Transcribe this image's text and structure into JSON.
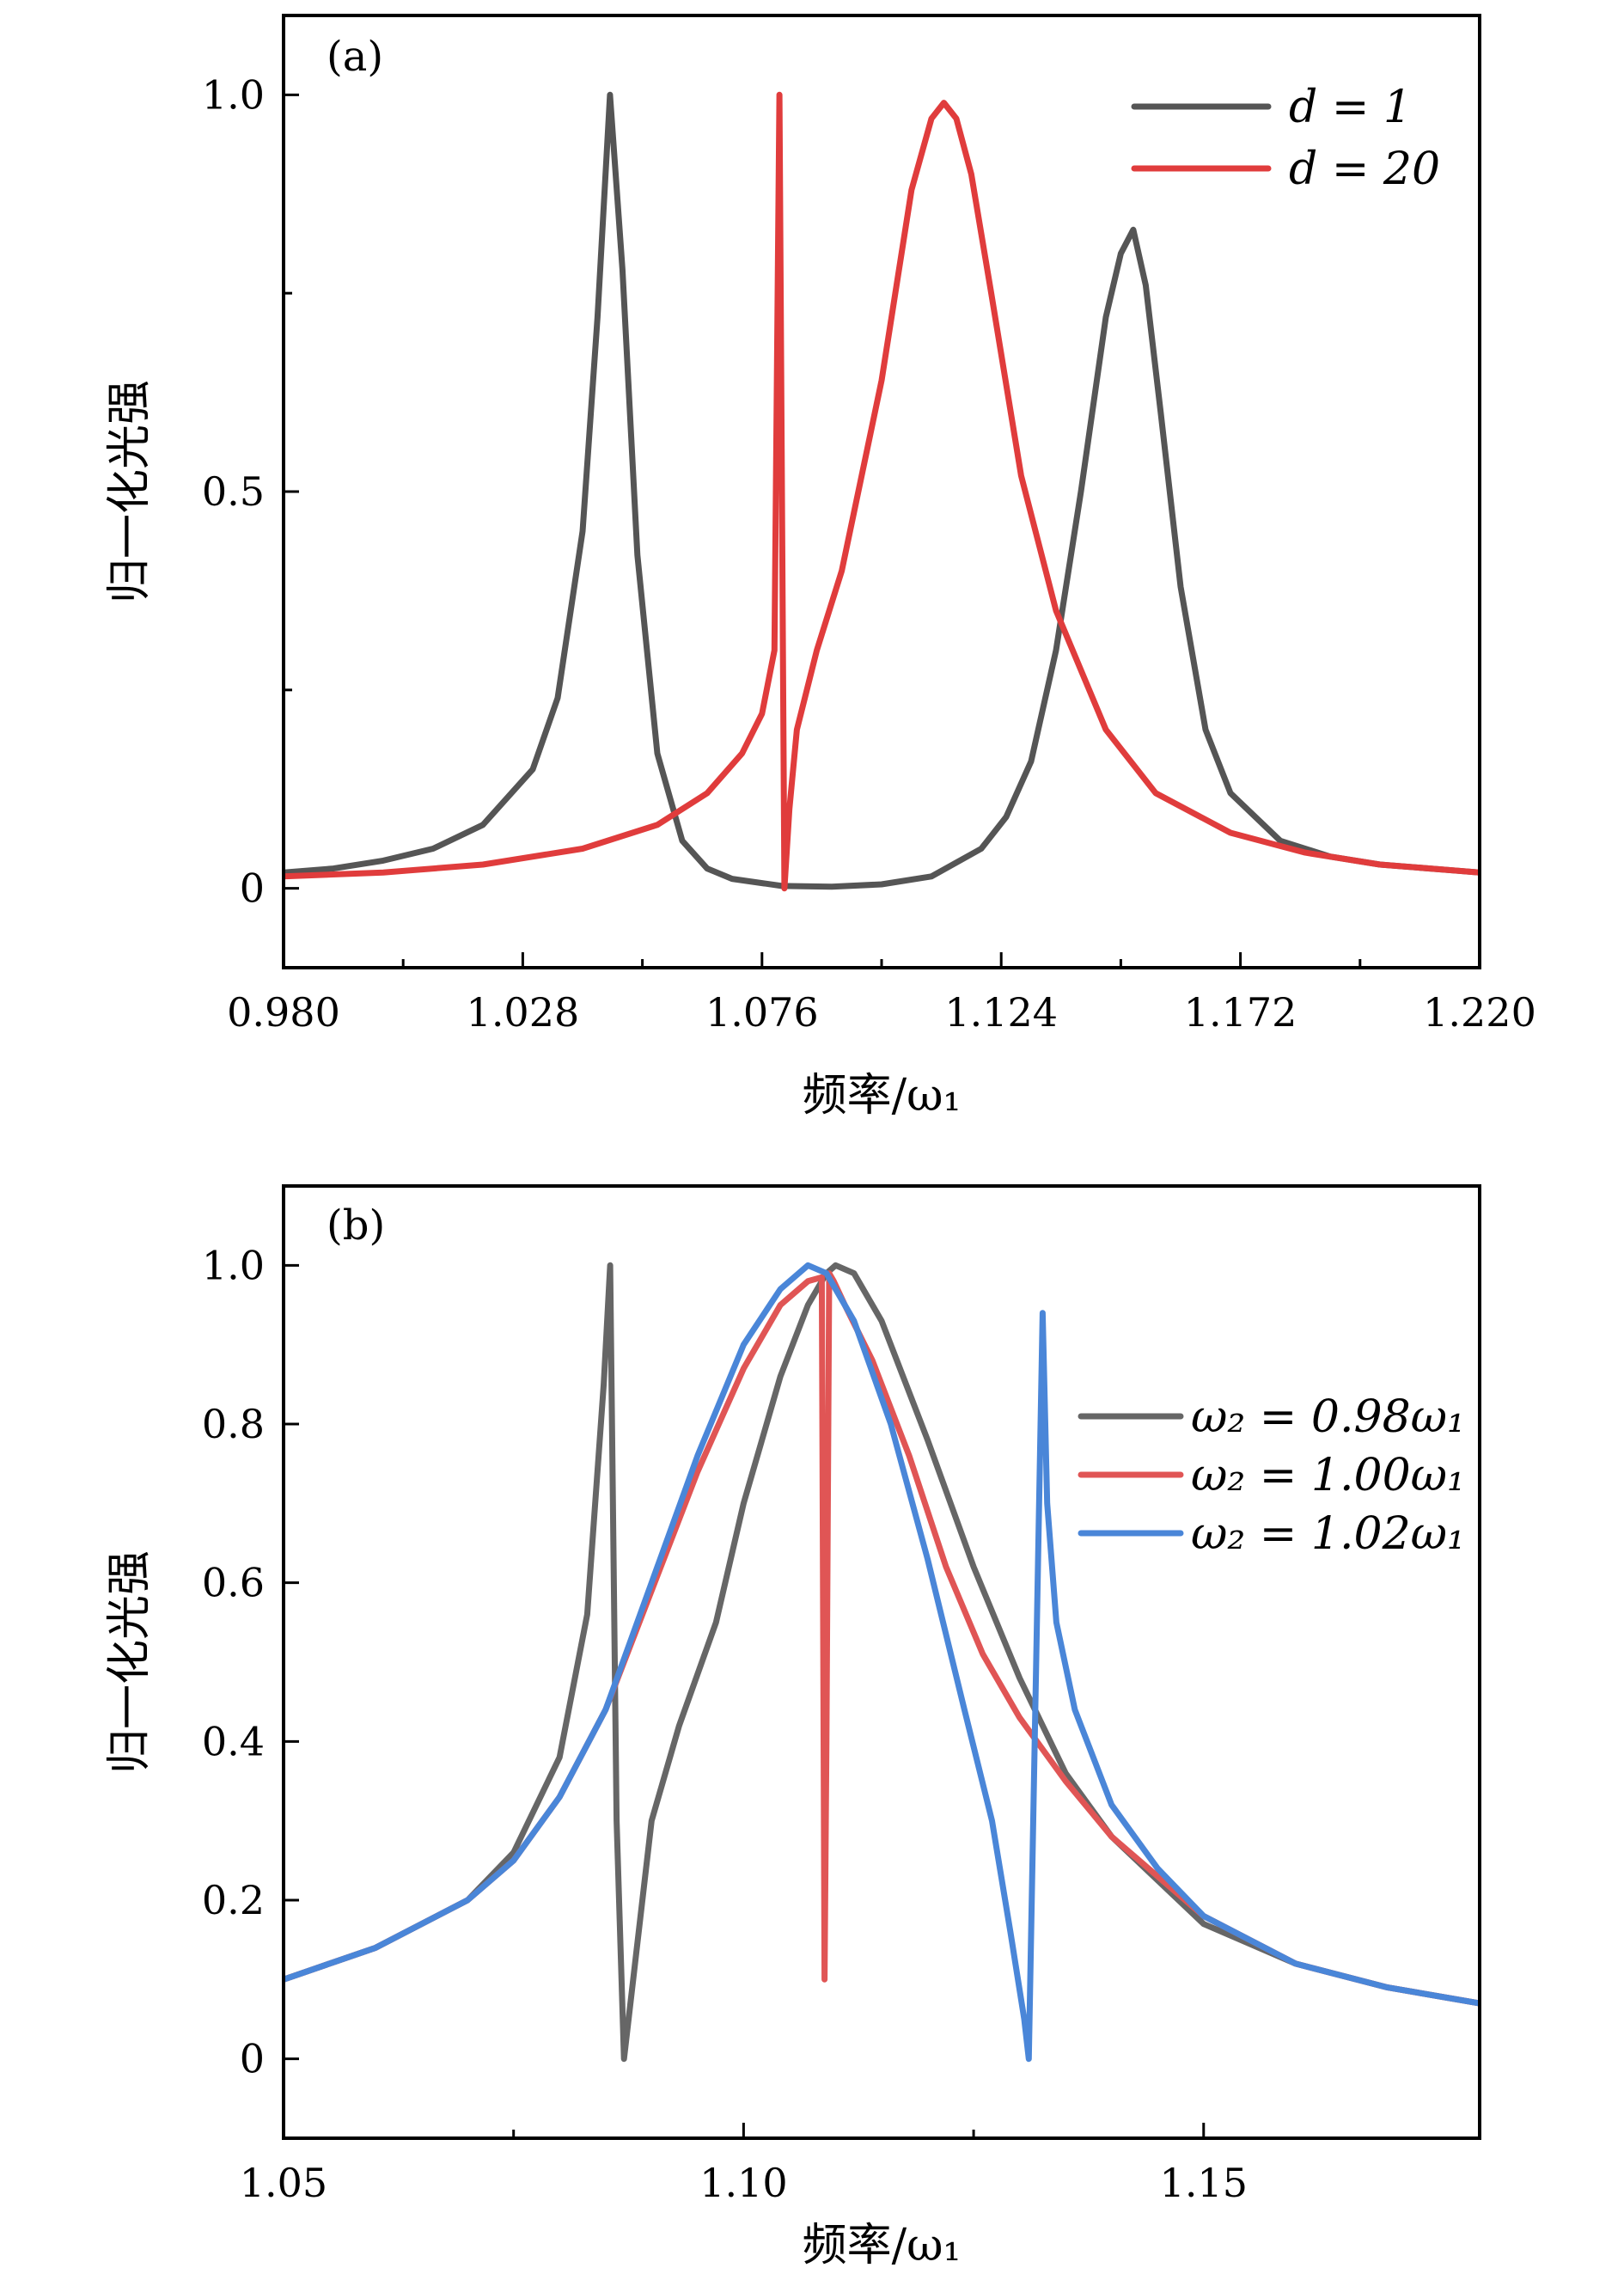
{
  "chart_data": [
    {
      "type": "line",
      "panel_label": "(a)",
      "xlabel": "频率/ω₁",
      "ylabel": "归一化光强",
      "xlim": [
        0.98,
        1.22
      ],
      "ylim": [
        -0.1,
        1.1
      ],
      "xticks": [
        0.98,
        1.028,
        1.076,
        1.124,
        1.172,
        1.22
      ],
      "xtick_labels": [
        "0.980",
        "1.028",
        "1.076",
        "1.124",
        "1.172",
        "1.220"
      ],
      "yticks": [
        0,
        0.5,
        1.0
      ],
      "ytick_labels": [
        "0",
        "0.5",
        "1.0"
      ],
      "grid": false,
      "legend_position": "top-right",
      "series": [
        {
          "name": "d = 1",
          "color": "#555555",
          "x": [
            0.98,
            0.99,
            1.0,
            1.01,
            1.02,
            1.03,
            1.035,
            1.04,
            1.043,
            1.0455,
            1.048,
            1.051,
            1.055,
            1.06,
            1.065,
            1.07,
            1.08,
            1.09,
            1.1,
            1.11,
            1.12,
            1.125,
            1.13,
            1.135,
            1.14,
            1.145,
            1.148,
            1.1505,
            1.153,
            1.156,
            1.16,
            1.165,
            1.17,
            1.18,
            1.19,
            1.2,
            1.21,
            1.22
          ],
          "y": [
            0.02,
            0.025,
            0.035,
            0.05,
            0.08,
            0.15,
            0.24,
            0.45,
            0.72,
            1.0,
            0.78,
            0.42,
            0.17,
            0.06,
            0.025,
            0.012,
            0.003,
            0.002,
            0.005,
            0.015,
            0.05,
            0.09,
            0.16,
            0.3,
            0.5,
            0.72,
            0.8,
            0.83,
            0.76,
            0.6,
            0.38,
            0.2,
            0.12,
            0.06,
            0.04,
            0.03,
            0.025,
            0.02
          ]
        },
        {
          "name": "d = 20",
          "color": "#e03c3c",
          "x": [
            0.98,
            1.0,
            1.02,
            1.04,
            1.055,
            1.065,
            1.072,
            1.076,
            1.0785,
            1.0795,
            1.0805,
            1.0815,
            1.083,
            1.087,
            1.092,
            1.1,
            1.106,
            1.11,
            1.1125,
            1.115,
            1.118,
            1.122,
            1.128,
            1.135,
            1.145,
            1.155,
            1.17,
            1.185,
            1.2,
            1.22
          ],
          "y": [
            0.015,
            0.02,
            0.03,
            0.05,
            0.08,
            0.12,
            0.17,
            0.22,
            0.3,
            1.0,
            0.0,
            0.1,
            0.2,
            0.3,
            0.4,
            0.64,
            0.88,
            0.97,
            0.99,
            0.97,
            0.9,
            0.75,
            0.52,
            0.35,
            0.2,
            0.12,
            0.07,
            0.045,
            0.03,
            0.02
          ]
        }
      ]
    },
    {
      "type": "line",
      "panel_label": "(b)",
      "xlabel": "频率/ω₁",
      "ylabel": "归一化光强",
      "xlim": [
        1.05,
        1.18
      ],
      "ylim": [
        -0.1,
        1.1
      ],
      "xticks": [
        1.05,
        1.1,
        1.15
      ],
      "xtick_labels": [
        "1.05",
        "1.10",
        "1.15"
      ],
      "yticks": [
        0,
        0.2,
        0.4,
        0.6,
        0.8,
        1.0
      ],
      "ytick_labels": [
        "0",
        "0.2",
        "0.4",
        "0.6",
        "0.8",
        "1.0"
      ],
      "grid": false,
      "legend_position": "right",
      "series": [
        {
          "name": "ω₂ = 0.98ω₁",
          "color": "#666666",
          "x": [
            1.05,
            1.06,
            1.07,
            1.075,
            1.08,
            1.083,
            1.0848,
            1.0855,
            1.0862,
            1.087,
            1.088,
            1.09,
            1.093,
            1.097,
            1.1,
            1.104,
            1.107,
            1.109,
            1.11,
            1.112,
            1.115,
            1.12,
            1.125,
            1.13,
            1.135,
            1.14,
            1.15,
            1.16,
            1.17,
            1.18
          ],
          "y": [
            0.1,
            0.14,
            0.2,
            0.26,
            0.38,
            0.56,
            0.85,
            1.0,
            0.3,
            0.0,
            0.1,
            0.3,
            0.42,
            0.55,
            0.7,
            0.86,
            0.95,
            0.99,
            1.0,
            0.99,
            0.93,
            0.78,
            0.62,
            0.48,
            0.36,
            0.28,
            0.17,
            0.12,
            0.09,
            0.07
          ]
        },
        {
          "name": "ω₂ = 1.00ω₁",
          "color": "#e05555",
          "x": [
            1.05,
            1.06,
            1.07,
            1.075,
            1.08,
            1.085,
            1.09,
            1.095,
            1.1,
            1.104,
            1.107,
            1.1085,
            1.1088,
            1.109,
            1.1093,
            1.1098,
            1.111,
            1.114,
            1.118,
            1.122,
            1.126,
            1.13,
            1.135,
            1.14,
            1.15,
            1.16,
            1.17,
            1.18
          ],
          "y": [
            0.1,
            0.14,
            0.2,
            0.25,
            0.33,
            0.44,
            0.59,
            0.74,
            0.87,
            0.95,
            0.98,
            0.985,
            0.1,
            0.4,
            0.99,
            0.98,
            0.95,
            0.88,
            0.76,
            0.62,
            0.51,
            0.43,
            0.35,
            0.28,
            0.18,
            0.12,
            0.09,
            0.07
          ]
        },
        {
          "name": "ω₂ = 1.02ω₁",
          "color": "#4a86d8",
          "x": [
            1.05,
            1.06,
            1.07,
            1.075,
            1.08,
            1.085,
            1.09,
            1.095,
            1.1,
            1.104,
            1.107,
            1.109,
            1.112,
            1.116,
            1.12,
            1.124,
            1.127,
            1.129,
            1.1305,
            1.131,
            1.1318,
            1.1325,
            1.133,
            1.134,
            1.136,
            1.14,
            1.145,
            1.15,
            1.16,
            1.17,
            1.18
          ],
          "y": [
            0.1,
            0.14,
            0.2,
            0.25,
            0.33,
            0.44,
            0.6,
            0.76,
            0.9,
            0.97,
            1.0,
            0.99,
            0.93,
            0.8,
            0.63,
            0.44,
            0.3,
            0.16,
            0.05,
            0.0,
            0.5,
            0.94,
            0.7,
            0.55,
            0.44,
            0.32,
            0.24,
            0.18,
            0.12,
            0.09,
            0.07
          ]
        }
      ]
    }
  ]
}
